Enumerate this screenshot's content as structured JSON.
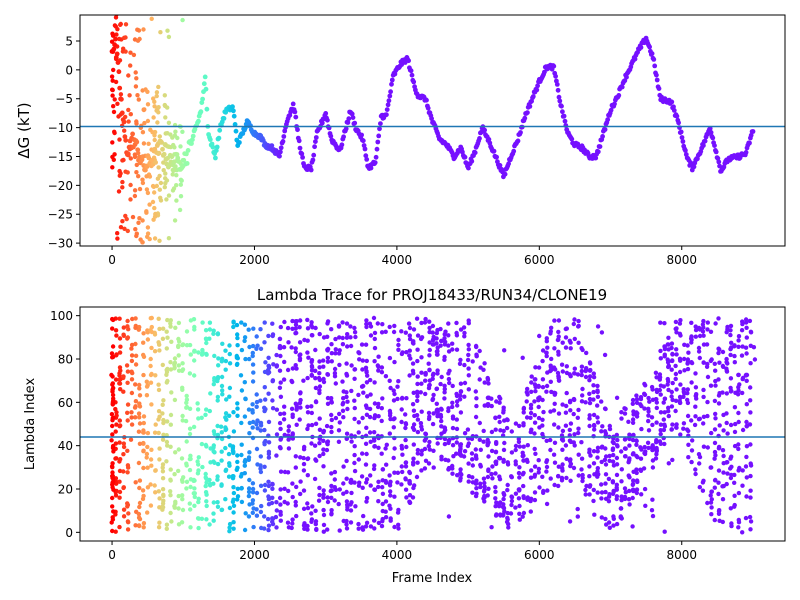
{
  "chart_data": [
    {
      "type": "scatter",
      "title": "",
      "xlabel": "",
      "ylabel": "ΔG (kT)",
      "xlim": [
        -450,
        9450
      ],
      "ylim": [
        -30.5,
        9.5
      ],
      "xticks": [
        0,
        2000,
        4000,
        6000,
        8000
      ],
      "yticks": [
        5,
        0,
        -5,
        -10,
        -15,
        -20,
        -25,
        -30
      ],
      "hline": -9.8,
      "hline_color": "#1f77b4",
      "colormap": "rainbow (red at frame 0 → purple at later frames)",
      "grid": false,
      "legend": "none",
      "trace_keypoints": [
        [
          50,
          4
        ],
        [
          200,
          -14
        ],
        [
          300,
          -12
        ],
        [
          450,
          -17
        ],
        [
          600,
          -15
        ],
        [
          700,
          -13
        ],
        [
          800,
          -16
        ],
        [
          950,
          -16
        ],
        [
          1050,
          -15
        ],
        [
          1150,
          -11
        ],
        [
          1250,
          -7
        ],
        [
          1310,
          -1
        ],
        [
          1350,
          -11
        ],
        [
          1450,
          -15
        ],
        [
          1520,
          -10
        ],
        [
          1600,
          -7
        ],
        [
          1700,
          -6.5
        ],
        [
          1760,
          -13
        ],
        [
          1900,
          -9
        ],
        [
          2000,
          -11
        ],
        [
          2080,
          -11.5
        ],
        [
          2150,
          -13
        ],
        [
          2250,
          -13.5
        ],
        [
          2350,
          -15
        ],
        [
          2450,
          -9
        ],
        [
          2550,
          -6
        ],
        [
          2620,
          -12
        ],
        [
          2700,
          -17
        ],
        [
          2800,
          -17
        ],
        [
          2880,
          -11
        ],
        [
          3000,
          -7.5
        ],
        [
          3080,
          -12
        ],
        [
          3200,
          -14
        ],
        [
          3350,
          -7
        ],
        [
          3420,
          -10
        ],
        [
          3520,
          -12
        ],
        [
          3600,
          -17
        ],
        [
          3700,
          -16
        ],
        [
          3780,
          -8
        ],
        [
          3850,
          -8
        ],
        [
          3950,
          -1
        ],
        [
          4050,
          1
        ],
        [
          4150,
          2
        ],
        [
          4250,
          -3
        ],
        [
          4300,
          -4.5
        ],
        [
          4400,
          -5
        ],
        [
          4500,
          -9
        ],
        [
          4600,
          -12
        ],
        [
          4700,
          -13
        ],
        [
          4800,
          -15
        ],
        [
          4900,
          -13.5
        ],
        [
          5000,
          -17
        ],
        [
          5100,
          -14
        ],
        [
          5200,
          -10
        ],
        [
          5300,
          -12.5
        ],
        [
          5420,
          -16
        ],
        [
          5500,
          -18.5
        ],
        [
          5600,
          -15
        ],
        [
          5700,
          -12
        ],
        [
          5800,
          -8
        ],
        [
          5900,
          -5
        ],
        [
          6000,
          -2
        ],
        [
          6100,
          0.5
        ],
        [
          6200,
          0.5
        ],
        [
          6300,
          -6
        ],
        [
          6400,
          -11
        ],
        [
          6500,
          -13
        ],
        [
          6600,
          -13.5
        ],
        [
          6700,
          -15
        ],
        [
          6800,
          -15
        ],
        [
          6900,
          -11
        ],
        [
          7000,
          -7
        ],
        [
          7100,
          -4.5
        ],
        [
          7200,
          -1.5
        ],
        [
          7300,
          1
        ],
        [
          7400,
          3.5
        ],
        [
          7500,
          5.5
        ],
        [
          7600,
          2
        ],
        [
          7700,
          -5
        ],
        [
          7850,
          -5.5
        ],
        [
          7950,
          -9
        ],
        [
          8080,
          -15.5
        ],
        [
          8150,
          -17
        ],
        [
          8300,
          -13
        ],
        [
          8400,
          -10
        ],
        [
          8550,
          -17.5
        ],
        [
          8650,
          -15.5
        ],
        [
          8800,
          -15
        ],
        [
          8900,
          -14.5
        ],
        [
          9000,
          -10.5
        ]
      ],
      "early_scatter_note": "Frames 0-1000 show widely scattered points between about -30 and +9 kT"
    },
    {
      "type": "scatter",
      "title": "Lambda Trace for PROJ18433/RUN34/CLONE19",
      "xlabel": "Frame Index",
      "ylabel": "Lambda Index",
      "xlim": [
        -450,
        9450
      ],
      "ylim": [
        -4,
        104
      ],
      "xticks": [
        0,
        2000,
        4000,
        6000,
        8000
      ],
      "yticks": [
        0,
        20,
        40,
        60,
        80,
        100
      ],
      "hline": 44,
      "hline_color": "#1f77b4",
      "colormap": "rainbow (red at frame 0 → purple at later frames)",
      "grid": false,
      "legend": "none",
      "point_range": {
        "x": [
          0,
          9000
        ],
        "y": [
          0,
          99
        ]
      },
      "density_envelope": [
        {
          "x": 0,
          "low": 0,
          "high": 99
        },
        {
          "x": 2000,
          "low": 0,
          "high": 99
        },
        {
          "x": 4000,
          "low": 0,
          "high": 99
        },
        {
          "x": 4500,
          "low": 35,
          "high": 99
        },
        {
          "x": 5000,
          "low": 20,
          "high": 99
        },
        {
          "x": 5600,
          "low": 0,
          "high": 50
        },
        {
          "x": 6200,
          "low": 20,
          "high": 99
        },
        {
          "x": 6600,
          "low": 20,
          "high": 99
        },
        {
          "x": 7000,
          "low": 0,
          "high": 50
        },
        {
          "x": 7500,
          "low": 20,
          "high": 70
        },
        {
          "x": 7900,
          "low": 50,
          "high": 99
        },
        {
          "x": 8500,
          "low": 0,
          "high": 99
        },
        {
          "x": 9000,
          "low": 0,
          "high": 99
        }
      ]
    }
  ]
}
